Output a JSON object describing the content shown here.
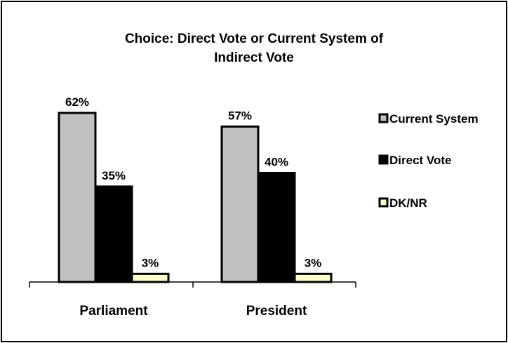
{
  "chart_data": {
    "type": "bar",
    "title_lines": [
      "Choice:  Direct Vote or Current System of",
      "Indirect Vote"
    ],
    "categories": [
      "Parliament",
      "President"
    ],
    "series": [
      {
        "name": "Current System",
        "values": [
          62,
          57
        ],
        "labels": [
          "62%",
          "57%"
        ],
        "color": "#c0c0c0"
      },
      {
        "name": "Direct Vote",
        "values": [
          35,
          40
        ],
        "labels": [
          "35%",
          "40%"
        ],
        "color": "#000000"
      },
      {
        "name": "DK/NR",
        "values": [
          3,
          3
        ],
        "labels": [
          "3%",
          "3%"
        ],
        "color": "#ffffcc"
      }
    ],
    "ylim": [
      0,
      62
    ],
    "legend_position": "right",
    "grid": false
  }
}
